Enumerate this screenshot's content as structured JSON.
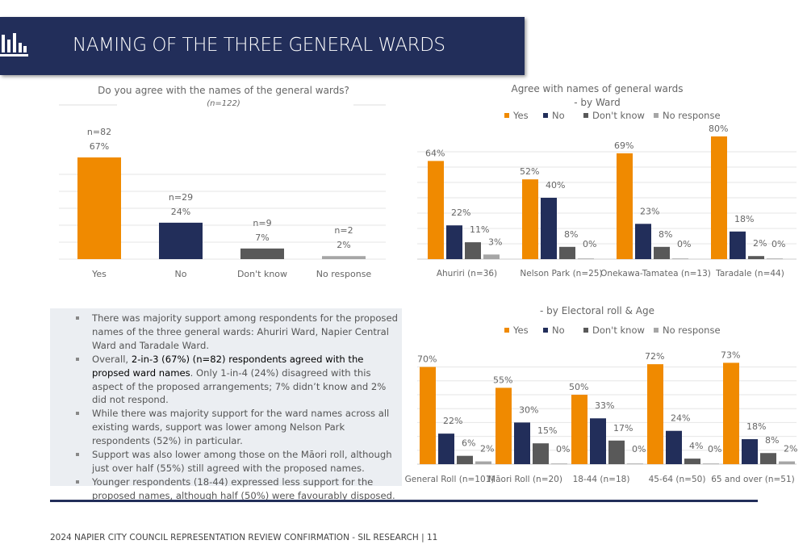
{
  "header": {
    "title": "NAMING OF THE THREE GENERAL WARDS",
    "icon": "bar-chart-icon"
  },
  "colors": {
    "yes": "#f08a00",
    "no": "#222e5a",
    "dont_know": "#595959",
    "no_response": "#a6a6a6",
    "header": "#222e5a"
  },
  "chart_data": [
    {
      "type": "bar",
      "title": "Do you agree with the names of the general wards?",
      "subtitle": "(n=122)",
      "categories": [
        "Yes",
        "No",
        "Don't know",
        "No response"
      ],
      "values": [
        67,
        24,
        7,
        2
      ],
      "counts": [
        "n=82",
        "n=29",
        "n=9",
        "n=2"
      ],
      "labels": [
        "67%",
        "24%",
        "7%",
        "2%"
      ],
      "ylim": [
        0,
        100
      ]
    },
    {
      "type": "bar",
      "title": "Agree with names of general wards",
      "subtitle": "- by Ward",
      "legend": [
        "Yes",
        "No",
        "Don't know",
        "No response"
      ],
      "legend_position": "top",
      "categories": [
        "Ahuriri (n=36)",
        "Nelson Park (n=25)",
        "Onekawa-Tamatea (n=13)",
        "Taradale (n=44)"
      ],
      "series": [
        {
          "name": "Yes",
          "values": [
            64,
            52,
            69,
            80
          ]
        },
        {
          "name": "No",
          "values": [
            22,
            40,
            23,
            18
          ]
        },
        {
          "name": "Don't know",
          "values": [
            11,
            8,
            8,
            2
          ]
        },
        {
          "name": "No response",
          "values": [
            3,
            0,
            0,
            0
          ]
        }
      ],
      "ylim": [
        0,
        100
      ]
    },
    {
      "type": "bar",
      "title": "- by Electoral roll &  Age",
      "legend": [
        "Yes",
        "No",
        "Don't know",
        "No response"
      ],
      "legend_position": "top",
      "categories": [
        "General Roll (n=101)",
        "Māori Roll (n=20)",
        "18-44 (n=18)",
        "45-64 (n=50)",
        "65 and over (n=51)"
      ],
      "series": [
        {
          "name": "Yes",
          "values": [
            70,
            55,
            50,
            72,
            73
          ]
        },
        {
          "name": "No",
          "values": [
            22,
            30,
            33,
            24,
            18
          ]
        },
        {
          "name": "Don't know",
          "values": [
            6,
            15,
            17,
            4,
            8
          ]
        },
        {
          "name": "No response",
          "values": [
            2,
            0,
            0,
            0,
            2
          ]
        }
      ],
      "ylim": [
        0,
        100
      ]
    }
  ],
  "bullets": [
    {
      "pre": "There was majority support among respondents for the proposed names of the three general wards: Ahuriri Ward, Napier Central Ward and Taradale Ward.",
      "bold": "",
      "post": ""
    },
    {
      "pre": "Overall, ",
      "bold": "2-in-3 (67%) (n=82) respondents agreed with the propsed ward names",
      "post": ". Only 1-in-4 (24%) disagreed with this aspect of the proposed arrangements; 7% didn’t know and 2% did not respond."
    },
    {
      "pre": "While there was majority support for the ward names across all existing wards, support was lower among Nelson Park respondents (52%) in particular.",
      "bold": "",
      "post": ""
    },
    {
      "pre": "Support was also lower among those on the Māori roll, although just over half (55%) still agreed with the proposed names.",
      "bold": "",
      "post": ""
    },
    {
      "pre": "Younger respondents (18-44) expressed less support for the proposed names, although half (50%) were favourably disposed.",
      "bold": "",
      "post": ""
    }
  ],
  "footer": "2024 NAPIER CITY COUNCIL REPRESENTATION REVIEW CONFIRMATION - SIL RESEARCH | 11"
}
